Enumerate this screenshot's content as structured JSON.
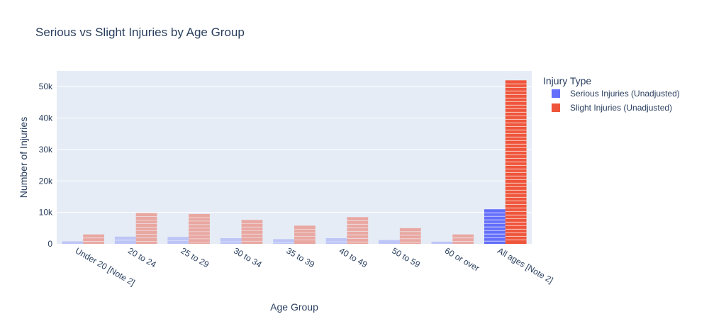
{
  "chart_data": {
    "type": "bar",
    "barmode": "group",
    "title": "Serious vs Slight Injuries by Age Group",
    "xlabel": "Age Group",
    "ylabel": "Number of Injuries",
    "ylim": [
      0,
      55000
    ],
    "yticks": [
      0,
      10000,
      20000,
      30000,
      40000,
      50000
    ],
    "ytick_labels": [
      "0",
      "10k",
      "20k",
      "30k",
      "40k",
      "50k"
    ],
    "grid": true,
    "legend": {
      "title": "Injury Type",
      "position": "top-right"
    },
    "categories": [
      "Under 20 [Note 2]",
      "20 to 24",
      "25 to 29",
      "30 to 34",
      "35 to 39",
      "40 to 49",
      "50 to 59",
      "60 or over",
      "All ages [Note 2]"
    ],
    "series": [
      {
        "name": "Serious Injuries (Unadjusted)",
        "color": "#636efa",
        "values": [
          800,
          2300,
          2200,
          1800,
          1500,
          1800,
          1200,
          700,
          11000
        ]
      },
      {
        "name": "Slight Injuries (Unadjusted)",
        "color": "#ef553b",
        "values": [
          3000,
          9800,
          9500,
          7600,
          5800,
          8500,
          5000,
          3000,
          52000
        ]
      }
    ],
    "highlight_category": "All ages [Note 2]",
    "faded_opacity": {
      "serious": 0.3,
      "slight": 0.45
    }
  }
}
